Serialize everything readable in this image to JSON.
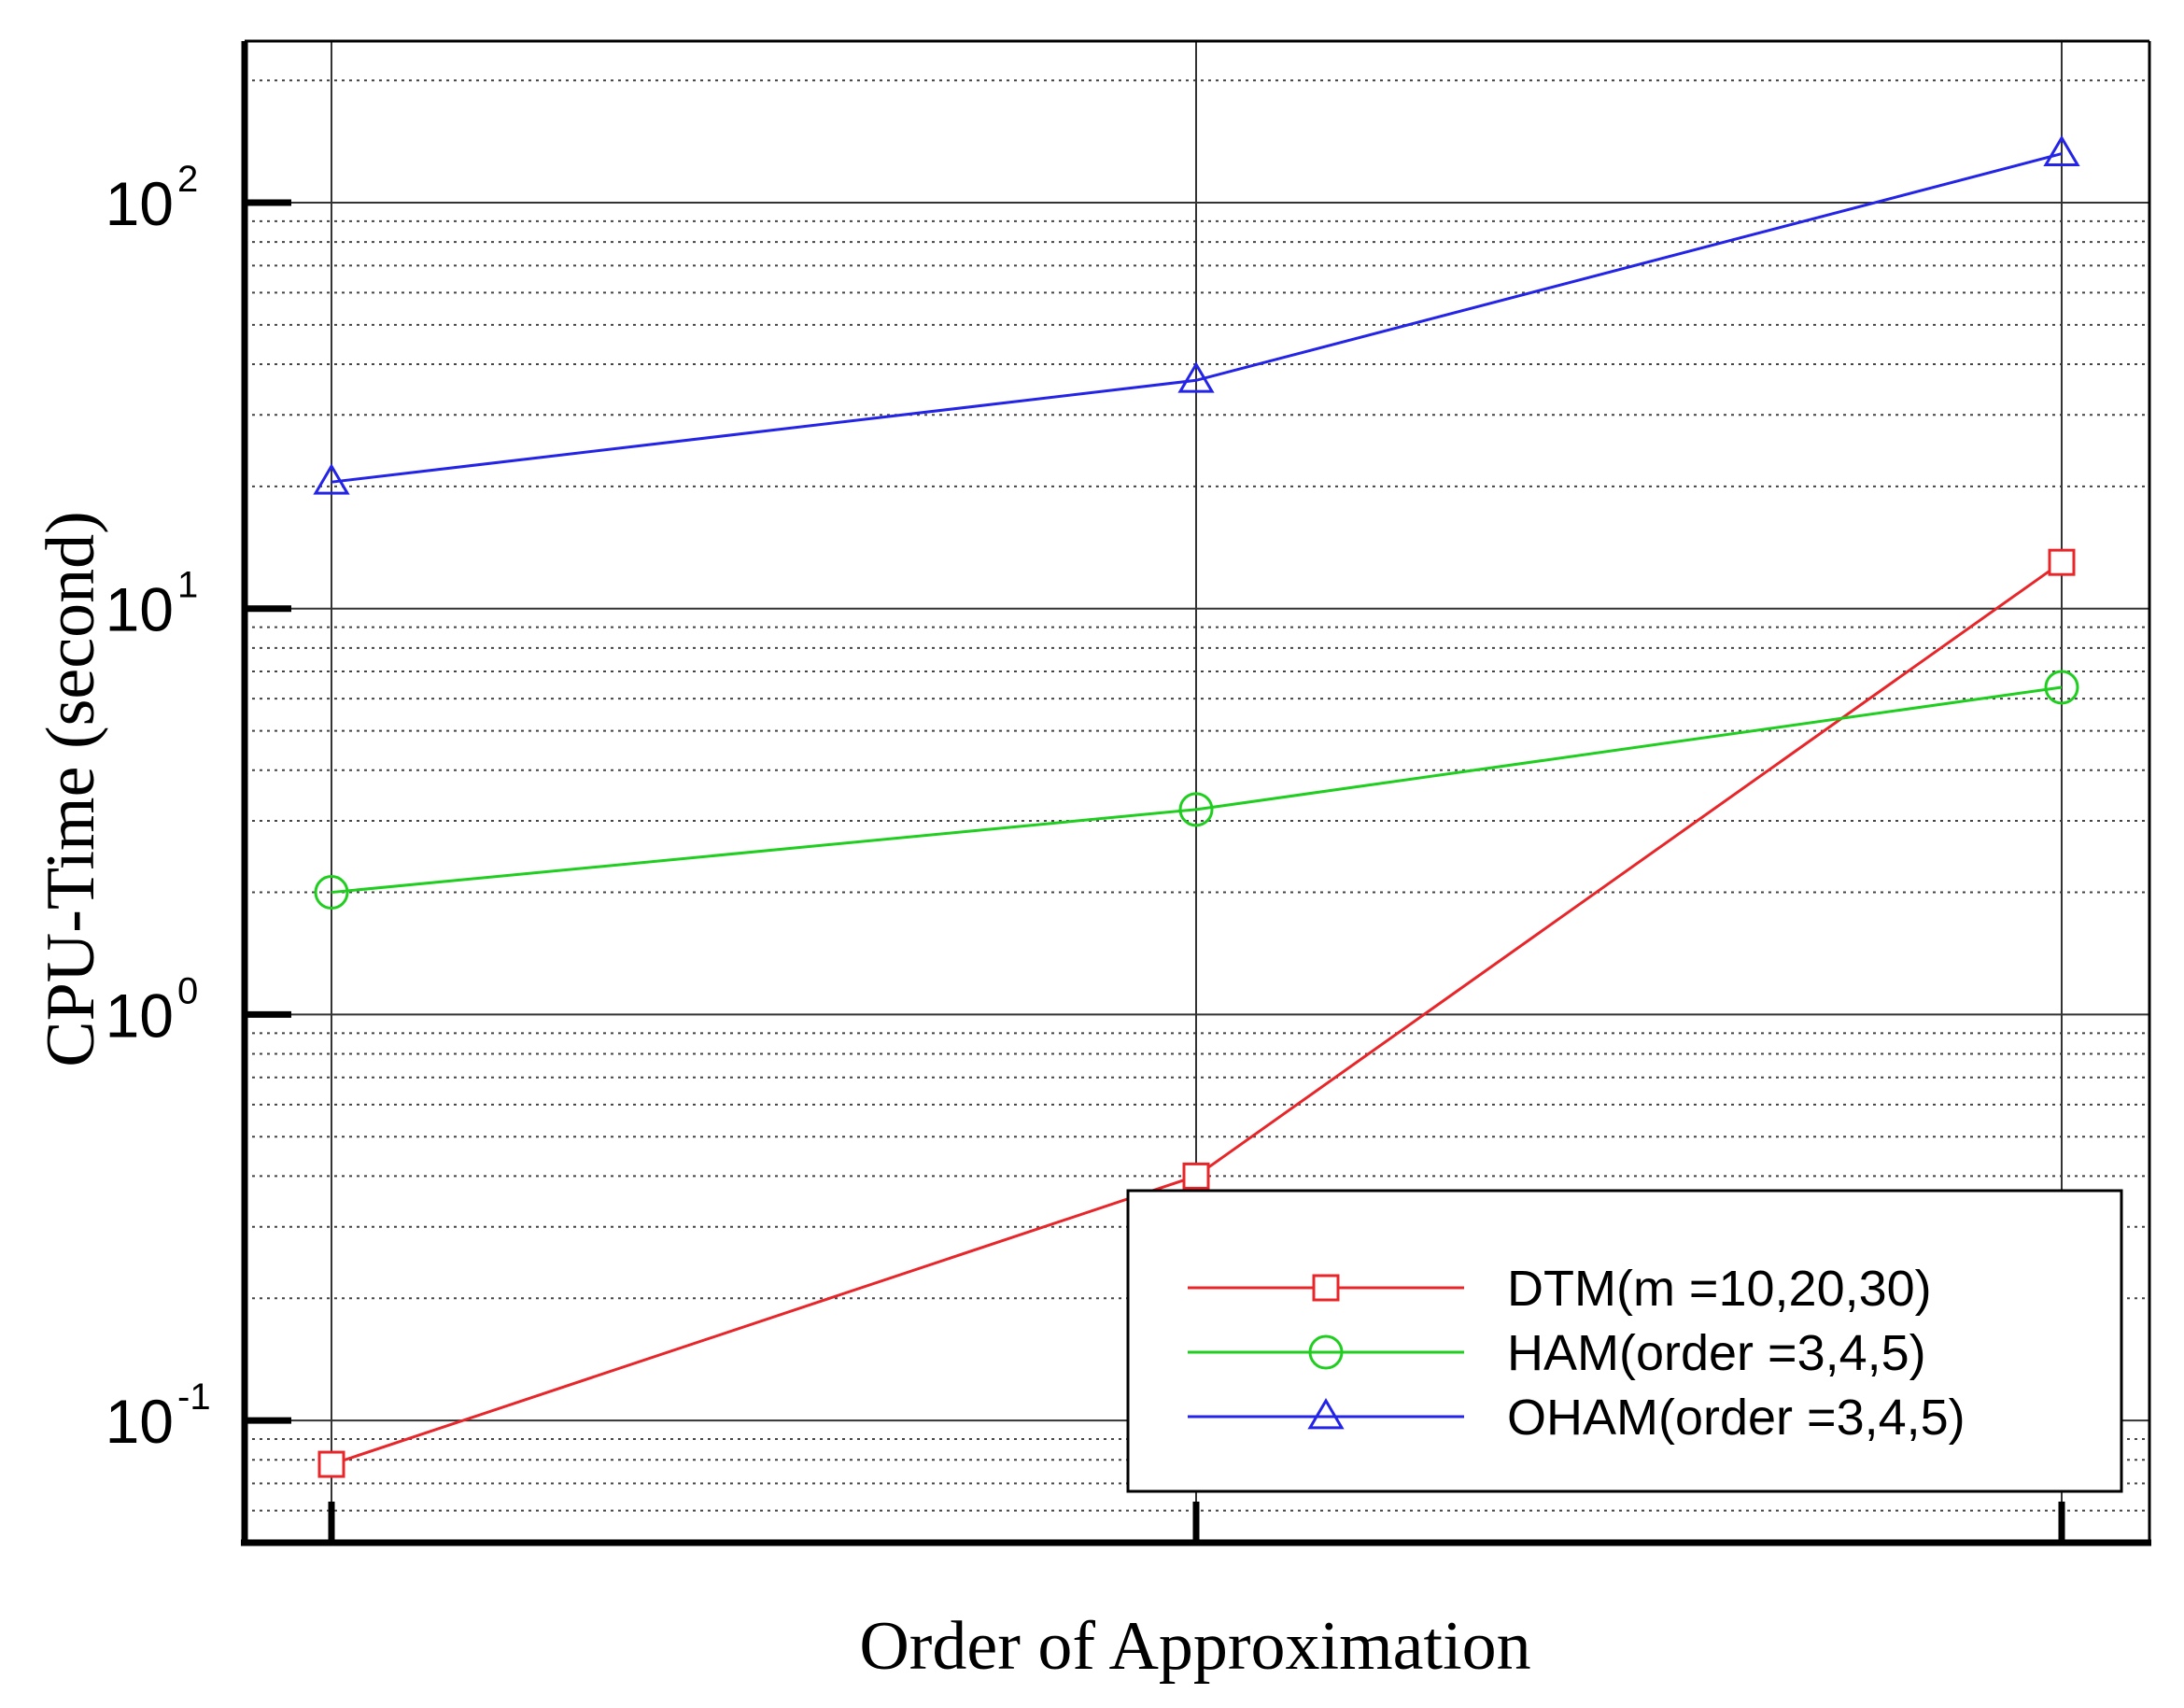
{
  "chart_data": {
    "type": "line",
    "title": "",
    "xlabel": "Order of Approximation",
    "ylabel": "CPU-Time (second)",
    "yscale": "log",
    "ylim": [
      0.05,
      250
    ],
    "grid": true,
    "legend_position": "bottom-right",
    "x_ticks": [
      "",
      "",
      ""
    ],
    "y_ticks": [
      {
        "value": 0.1,
        "base": "10",
        "exp": "-1"
      },
      {
        "value": 1,
        "base": "10",
        "exp": "0"
      },
      {
        "value": 10,
        "base": "10",
        "exp": "1"
      },
      {
        "value": 100,
        "base": "10",
        "exp": "2"
      }
    ],
    "series": [
      {
        "name": "DTM(m =10,20,30)",
        "color": "#e8262a",
        "marker": "square",
        "values": [
          0.078,
          0.4,
          13
        ]
      },
      {
        "name": "HAM(order =3,4,5)",
        "color": "#1fce1f",
        "marker": "circle",
        "values": [
          2.0,
          3.2,
          6.4
        ]
      },
      {
        "name": "OHAM(order =3,4,5)",
        "color": "#2424e8",
        "marker": "triangle",
        "values": [
          20.5,
          36.5,
          132
        ]
      }
    ]
  }
}
